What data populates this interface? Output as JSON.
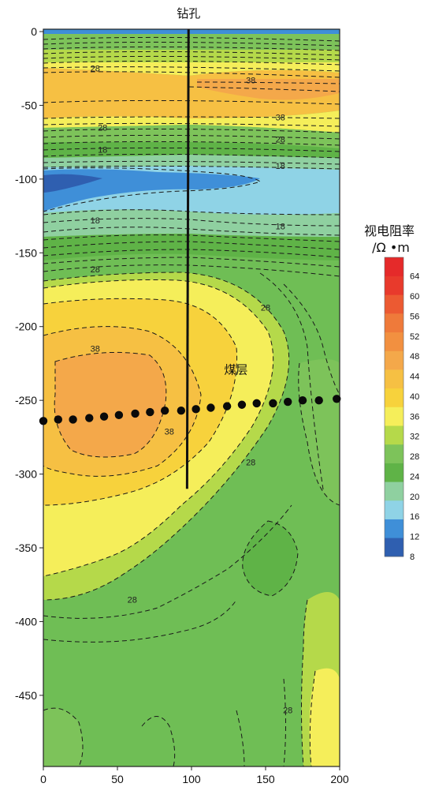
{
  "chart_data": {
    "type": "heatmap",
    "title": "",
    "xlabel": "",
    "ylabel": "",
    "xlim": [
      0,
      200
    ],
    "ylim": [
      -500,
      0
    ],
    "x_ticks": [
      0,
      50,
      100,
      150,
      200
    ],
    "y_ticks": [
      0,
      -50,
      -100,
      -150,
      -200,
      -250,
      -300,
      -350,
      -400,
      -450
    ],
    "colorbar": {
      "title_line1": "视电阻率",
      "title_line2": "/Ω •m",
      "levels": [
        8,
        12,
        16,
        20,
        24,
        28,
        32,
        36,
        40,
        44,
        48,
        52,
        56,
        60,
        64
      ],
      "colors": [
        "#2f5fb0",
        "#3f8fd8",
        "#8fd3e6",
        "#8fd0a0",
        "#5fb347",
        "#7dc35a",
        "#b5d94a",
        "#f5ee5a",
        "#f7d23c",
        "#f6c043",
        "#f4a84a",
        "#f29040",
        "#ef7a3a",
        "#ec5a32",
        "#e83a2c",
        "#e52a2a"
      ]
    },
    "contour_labels": [
      {
        "x": 35,
        "y": -25,
        "text": "28"
      },
      {
        "x": 140,
        "y": -33,
        "text": "38"
      },
      {
        "x": 160,
        "y": -58,
        "text": "38"
      },
      {
        "x": 40,
        "y": -65,
        "text": "28"
      },
      {
        "x": 160,
        "y": -73,
        "text": "28"
      },
      {
        "x": 40,
        "y": -80,
        "text": "18"
      },
      {
        "x": 160,
        "y": -91,
        "text": "18"
      },
      {
        "x": 35,
        "y": -128,
        "text": "18"
      },
      {
        "x": 160,
        "y": -132,
        "text": "18"
      },
      {
        "x": 35,
        "y": -161,
        "text": "28"
      },
      {
        "x": 150,
        "y": -187,
        "text": "28"
      },
      {
        "x": 35,
        "y": -215,
        "text": "38"
      },
      {
        "x": 85,
        "y": -271,
        "text": "38"
      },
      {
        "x": 140,
        "y": -292,
        "text": "28"
      },
      {
        "x": 60,
        "y": -385,
        "text": "28"
      },
      {
        "x": 165,
        "y": -460,
        "text": "28"
      }
    ],
    "borehole": {
      "label": "钻孔",
      "x_top": 98,
      "x_bottom": 97,
      "y_top": 0,
      "y_bottom": -310
    },
    "coal_seam": {
      "label": "煤层",
      "points": [
        {
          "x": 0,
          "y": -264
        },
        {
          "x": 10,
          "y": -263
        },
        {
          "x": 20,
          "y": -263
        },
        {
          "x": 31,
          "y": -262
        },
        {
          "x": 41,
          "y": -261
        },
        {
          "x": 51,
          "y": -260
        },
        {
          "x": 62,
          "y": -259
        },
        {
          "x": 72,
          "y": -258
        },
        {
          "x": 82,
          "y": -257
        },
        {
          "x": 93,
          "y": -257
        },
        {
          "x": 103,
          "y": -256
        },
        {
          "x": 113,
          "y": -255
        },
        {
          "x": 124,
          "y": -254
        },
        {
          "x": 134,
          "y": -253
        },
        {
          "x": 144,
          "y": -252
        },
        {
          "x": 155,
          "y": -252
        },
        {
          "x": 165,
          "y": -251
        },
        {
          "x": 175,
          "y": -250
        },
        {
          "x": 186,
          "y": -250
        },
        {
          "x": 198,
          "y": -249
        }
      ]
    }
  }
}
